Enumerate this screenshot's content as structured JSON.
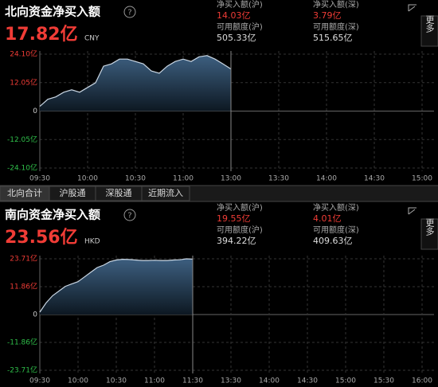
{
  "tabs": [
    "北向合计",
    "沪股通",
    "深股通",
    "近期流入"
  ],
  "chart_data": [
    {
      "type": "area",
      "title": "北向资金净买入额",
      "total": "17.82亿",
      "unit": "CNY",
      "side_label": "更多",
      "stats": [
        {
          "label": "净买入额(沪)",
          "value": "14.03亿"
        },
        {
          "label": "净买入额(深)",
          "value": "3.79亿"
        },
        {
          "label": "可用额度(沪)",
          "value": "505.33亿"
        },
        {
          "label": "可用额度(深)",
          "value": "515.65亿"
        }
      ],
      "x": [
        "09:30",
        "09:35",
        "09:40",
        "09:45",
        "09:50",
        "09:55",
        "10:00",
        "10:05",
        "10:10",
        "10:15",
        "10:20",
        "10:25",
        "10:30",
        "10:35",
        "10:40",
        "10:45",
        "10:50",
        "10:55",
        "11:00",
        "11:05",
        "11:10",
        "11:15",
        "11:20",
        "11:25",
        "11:30"
      ],
      "values": [
        2,
        5,
        6,
        8,
        9,
        8,
        10,
        12,
        19,
        20,
        22,
        22,
        21,
        20,
        17,
        16,
        19,
        21,
        22,
        21,
        23,
        23.5,
        22,
        20,
        17.82
      ],
      "color": "#c9d6e3",
      "xticks": [
        "09:30",
        "10:00",
        "10:30",
        "11:00",
        "13:00",
        "13:30",
        "14:00",
        "14:30",
        "15:00"
      ],
      "ylim": [
        -24.1,
        24.1
      ],
      "yticks": [
        {
          "value": 24.1,
          "label": "24.10亿"
        },
        {
          "value": 12.05,
          "label": "12.05亿"
        },
        0,
        {
          "value": -12.05,
          "label": "-12.05亿"
        },
        {
          "value": -24.1,
          "label": "-24.10亿"
        }
      ],
      "grid": true
    },
    {
      "type": "area",
      "title": "南向资金净买入额",
      "total": "23.56亿",
      "unit": "HKD",
      "side_label": "更多",
      "stats": [
        {
          "label": "净买入额(沪)",
          "value": "19.55亿"
        },
        {
          "label": "净买入额(深)",
          "value": "4.01亿"
        },
        {
          "label": "可用额度(沪)",
          "value": "394.22亿"
        },
        {
          "label": "可用额度(深)",
          "value": "409.63亿"
        }
      ],
      "x": [
        "09:30",
        "09:35",
        "09:40",
        "09:45",
        "09:50",
        "09:55",
        "10:00",
        "10:05",
        "10:10",
        "10:15",
        "10:20",
        "10:25",
        "10:30",
        "10:35",
        "10:40",
        "10:45",
        "10:50",
        "10:55",
        "11:00",
        "11:05",
        "11:10",
        "11:15",
        "11:20",
        "11:25",
        "11:30"
      ],
      "values": [
        1,
        5,
        8,
        10,
        12,
        13,
        14,
        16,
        18,
        20,
        21,
        22.5,
        23.2,
        23.5,
        23.4,
        23.2,
        23,
        23,
        23.1,
        23,
        23,
        23.2,
        23.3,
        23.7,
        23.56
      ],
      "color": "#c9d6e3",
      "xticks": [
        "09:30",
        "10:00",
        "10:30",
        "11:00",
        "11:30",
        "13:30",
        "14:00",
        "14:30",
        "15:00",
        "15:30",
        "16:00"
      ],
      "ylim": [
        -23.71,
        23.71
      ],
      "yticks": [
        {
          "value": 23.71,
          "label": "23.71亿"
        },
        {
          "value": 11.86,
          "label": "11.86亿"
        },
        0,
        {
          "value": -11.86,
          "label": "-11.86亿"
        },
        {
          "value": -23.71,
          "label": "-23.71亿"
        }
      ],
      "grid": true
    }
  ]
}
